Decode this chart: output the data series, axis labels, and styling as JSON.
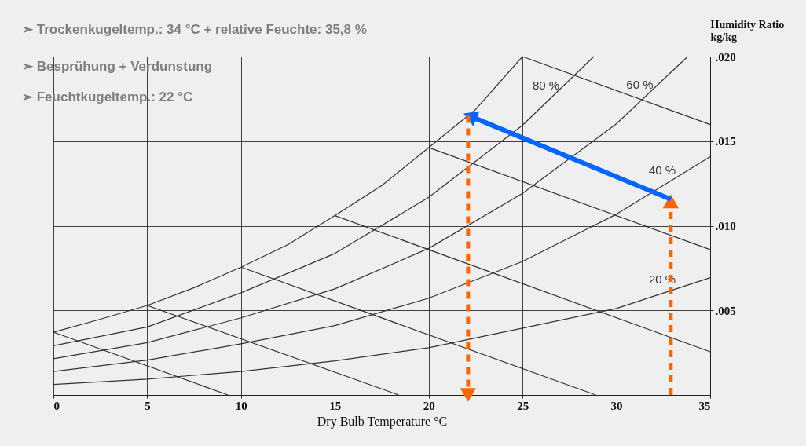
{
  "chart_data": {
    "type": "line",
    "xlabel": "Dry Bulb Temperature °C",
    "ylabel": "Humidity Ratio\nkg/kg",
    "xlim": [
      0,
      35
    ],
    "ylim": [
      0,
      0.02
    ],
    "xticks": [
      0,
      5,
      10,
      15,
      20,
      25,
      30,
      35
    ],
    "yticks": [
      {
        "value": 0.005,
        "label": ".005"
      },
      {
        "value": 0.01,
        "label": ".010"
      },
      {
        "value": 0.015,
        "label": ".015"
      },
      {
        "value": 0.02,
        "label": ".020"
      }
    ],
    "grid": true,
    "marker": "none",
    "line_style": "solid",
    "series": [
      {
        "color": "#333333",
        "x": [
          0,
          2.5,
          5,
          7.5,
          10,
          12.5,
          15,
          17.5,
          20,
          22.5,
          25
        ],
        "values": [
          0.00371,
          0.00448,
          0.00529,
          0.00634,
          0.00755,
          0.00889,
          0.0106,
          0.01238,
          0.01462,
          0.01687,
          0.02
        ]
      },
      {
        "name": "80 %",
        "color": "#333333",
        "x": [
          0,
          5,
          10,
          15,
          20,
          25,
          28.8
        ],
        "values": [
          0.00291,
          0.00402,
          0.00604,
          0.00836,
          0.01168,
          0.01594,
          0.02
        ]
      },
      {
        "name": "60 %",
        "color": "#333333",
        "x": [
          0,
          5,
          10,
          15,
          20,
          25,
          30,
          33.8
        ],
        "values": [
          0.00214,
          0.00309,
          0.00456,
          0.00627,
          0.00866,
          0.01191,
          0.01602,
          0.02
        ]
      },
      {
        "name": "40 %",
        "color": "#333333",
        "x": [
          0,
          5,
          10,
          15,
          20,
          25,
          30,
          35
        ],
        "values": [
          0.00139,
          0.00206,
          0.00302,
          0.0041,
          0.00572,
          0.00789,
          0.01068,
          0.01408
        ]
      },
      {
        "name": "20 %",
        "color": "#333333",
        "x": [
          0,
          5,
          10,
          15,
          20,
          25,
          30,
          35
        ],
        "values": [
          0.00062,
          0.00093,
          0.00139,
          0.00201,
          0.00279,
          0.00395,
          0.00511,
          0.00693
        ]
      },
      {
        "color": "#333333",
        "x": [
          0,
          9.3
        ],
        "values": [
          0.00371,
          0
        ]
      },
      {
        "color": "#333333",
        "x": [
          5,
          18.4
        ],
        "values": [
          0.00529,
          0
        ]
      },
      {
        "color": "#333333",
        "x": [
          10,
          28.9
        ],
        "values": [
          0.00755,
          0
        ]
      },
      {
        "color": "#333333",
        "x": [
          15,
          35
        ],
        "values": [
          0.0106,
          0.00255
        ]
      },
      {
        "color": "#333333",
        "x": [
          20,
          35
        ],
        "values": [
          0.01462,
          0.00859
        ]
      },
      {
        "color": "#333333",
        "x": [
          25,
          35
        ],
        "values": [
          0.02,
          0.01598
        ]
      },
      {
        "color": "#ff6600",
        "line_style": "dashed",
        "marker": "triangle",
        "x": [
          32.9,
          32.9
        ],
        "values": [
          0,
          0.01145
        ]
      },
      {
        "color": "#0066ff",
        "line_style": "solid",
        "marker": "triangle",
        "x": [
          32.9,
          22.2
        ],
        "values": [
          0.01157,
          0.01648
        ]
      },
      {
        "color": "#ff6600",
        "line_style": "dashed",
        "marker": "triangle",
        "x": [
          22.1,
          22.1
        ],
        "values": [
          0.0165,
          0
        ]
      }
    ],
    "annotations": [
      "➢ Trockenkugeltemp.: 34 °C + relative Feuchte: 35,8 %",
      "➢ Besprühung + Verdunstung",
      "➢ Feuchtkugeltemp.: 22 °C"
    ]
  }
}
